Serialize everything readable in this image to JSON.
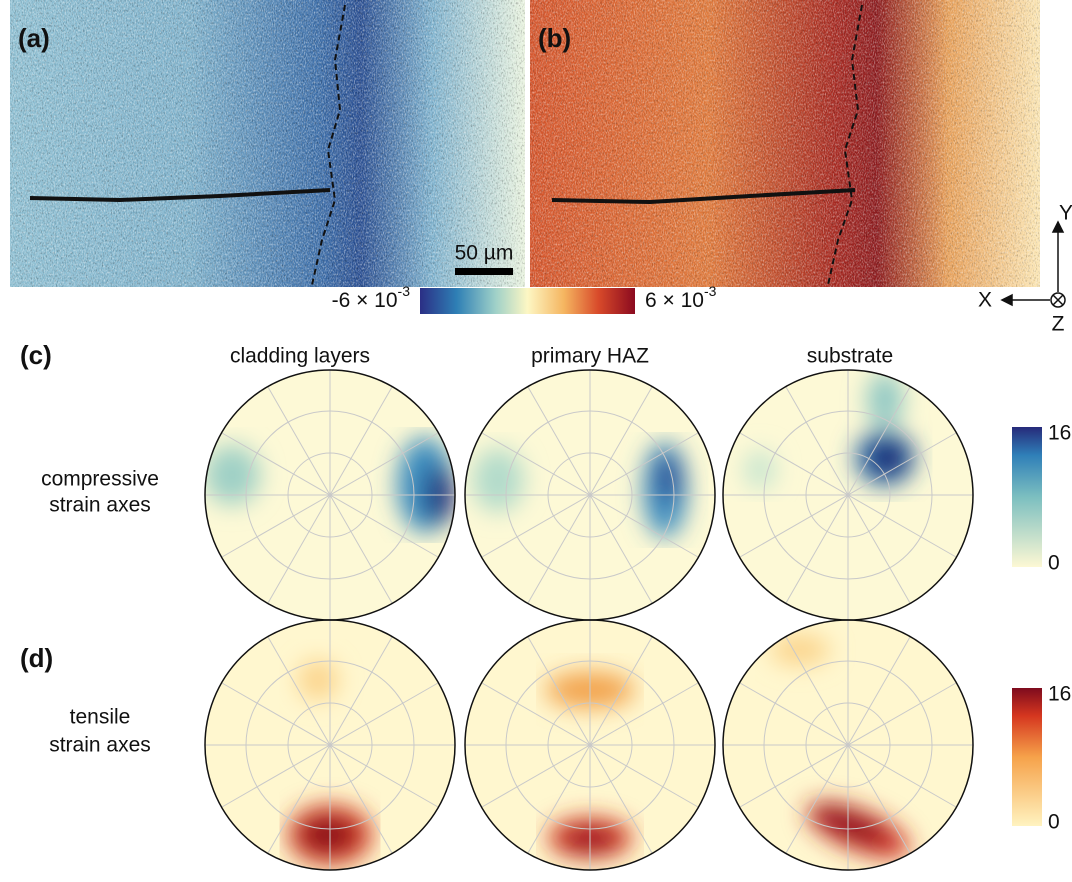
{
  "panels": {
    "a": "(a)",
    "b": "(b)",
    "c": "(c)",
    "d": "(d)"
  },
  "scale_bar": "50 µm",
  "strain_colorbar": {
    "min": {
      "base": "-6 × 10",
      "exponent": "-3"
    },
    "max": {
      "base": "6 × 10",
      "exponent": "-3"
    }
  },
  "axes": {
    "x": "X",
    "y": "Y",
    "z": "Z"
  },
  "columns": [
    "cladding layers",
    "primary HAZ",
    "substrate"
  ],
  "rows": [
    {
      "label": [
        "compressive",
        "strain axes"
      ],
      "colorbar": {
        "max": 16,
        "min": 0
      }
    },
    {
      "label": [
        "tensile",
        "strain axes"
      ],
      "colorbar": {
        "max": 16,
        "min": 0
      }
    }
  ]
}
